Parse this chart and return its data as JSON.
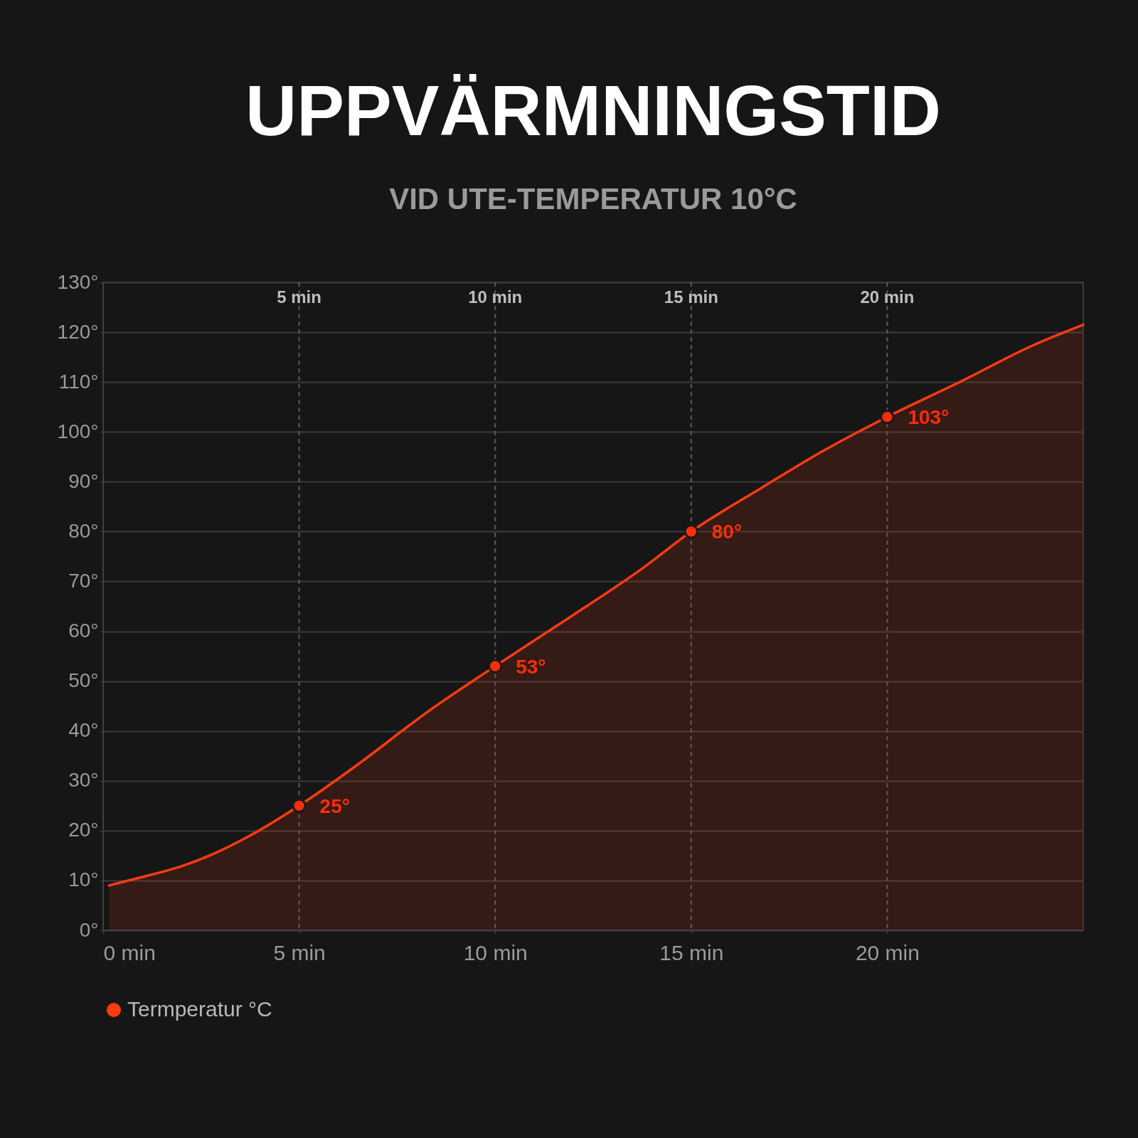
{
  "chart_data": {
    "type": "area",
    "title": "UPPVÄRMNINGSTID",
    "subtitle": "VID UTE-TEMPERATUR 10°C",
    "series": [
      {
        "name": "Termperatur °C",
        "color": "#ff3b12",
        "x": [
          0.15,
          1,
          1.9,
          2.8,
          3.7,
          5,
          6.45,
          8.27,
          10,
          11.9,
          13.7,
          15,
          16.8,
          18.3,
          20,
          21.9,
          23.7,
          25
        ],
        "values": [
          9,
          10.7,
          12.6,
          15.3,
          18.8,
          25,
          33,
          43.8,
          53,
          62.8,
          72.3,
          80,
          88.8,
          95.9,
          103,
          110.2,
          117.3,
          121.5
        ]
      },
      {
        "type": "scatter",
        "color": "#ff2e0a",
        "x": [
          5,
          10,
          15,
          20
        ],
        "values": [
          25,
          53,
          80,
          103
        ],
        "value_labels": [
          "25°",
          "53°",
          "80°",
          "103°"
        ]
      }
    ],
    "xlim": [
      0,
      25
    ],
    "xticks": [
      {
        "value": 0,
        "label": "0 min"
      },
      {
        "value": 5,
        "label": "5 min"
      },
      {
        "value": 10,
        "label": "10 min"
      },
      {
        "value": 15,
        "label": "15 min"
      },
      {
        "value": 20,
        "label": "20 min"
      }
    ],
    "ylim": [
      0,
      130
    ],
    "yticks": [
      {
        "value": 0,
        "label": "0°"
      },
      {
        "value": 10,
        "label": "10°"
      },
      {
        "value": 20,
        "label": "20°"
      },
      {
        "value": 30,
        "label": "30°"
      },
      {
        "value": 40,
        "label": "40°"
      },
      {
        "value": 50,
        "label": "50°"
      },
      {
        "value": 60,
        "label": "60°"
      },
      {
        "value": 70,
        "label": "70°"
      },
      {
        "value": 80,
        "label": "80°"
      },
      {
        "value": 90,
        "label": "90°"
      },
      {
        "value": 100,
        "label": "100°"
      },
      {
        "value": 110,
        "label": "110°"
      },
      {
        "value": 120,
        "label": "120°"
      },
      {
        "value": 130,
        "label": "130°"
      }
    ],
    "ref_lines": [
      {
        "axis": "x",
        "value": 5,
        "label": "5 min",
        "line_style": "dashed"
      },
      {
        "axis": "x",
        "value": 10,
        "label": "10 min",
        "line_style": "dashed"
      },
      {
        "axis": "x",
        "value": 15,
        "label": "15 min",
        "line_style": "dashed"
      },
      {
        "axis": "x",
        "value": 20,
        "label": "20 min",
        "line_style": "dashed"
      }
    ],
    "grid": "y",
    "legend": "bottom"
  }
}
